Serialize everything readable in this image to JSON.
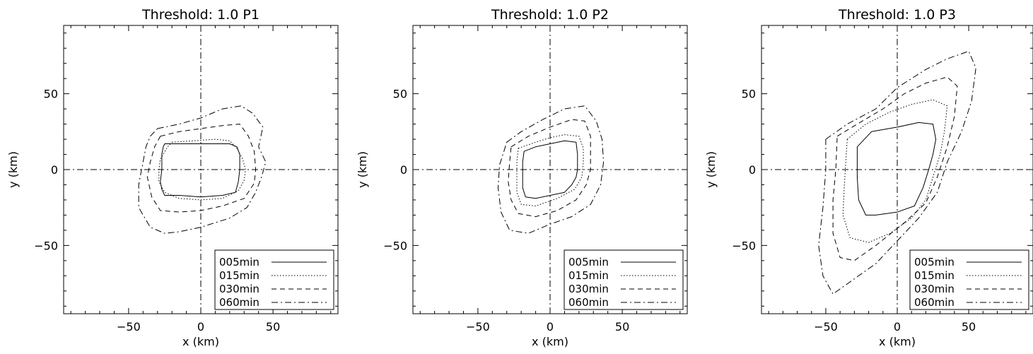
{
  "chart_data": [
    {
      "type": "line",
      "title": "Threshold: 1.0 P1",
      "xlabel": "x (km)",
      "ylabel": "y (km)",
      "xlim": [
        -95,
        95
      ],
      "ylim": [
        -95,
        95
      ],
      "xticks": [
        "−50",
        "0",
        "50"
      ],
      "yticks": [
        "−50",
        "0",
        "50"
      ],
      "grid": false,
      "legend_position": "bottom-right",
      "series": [
        {
          "name": "005min",
          "dash": "solid",
          "points": [
            [
              -25,
              17
            ],
            [
              -12,
              17
            ],
            [
              0,
              17
            ],
            [
              10,
              17
            ],
            [
              20,
              17
            ],
            [
              25,
              15
            ],
            [
              27,
              10
            ],
            [
              27,
              0
            ],
            [
              26,
              -8
            ],
            [
              24,
              -15
            ],
            [
              15,
              -17
            ],
            [
              0,
              -18
            ],
            [
              -15,
              -17
            ],
            [
              -25,
              -17
            ],
            [
              -27,
              -13
            ],
            [
              -28,
              -8
            ],
            [
              -27,
              0
            ],
            [
              -27,
              10
            ],
            [
              -26,
              15
            ],
            [
              -25,
              17
            ]
          ]
        },
        {
          "name": "015min",
          "dash": "dotted",
          "points": [
            [
              -20,
              18
            ],
            [
              -5,
              19
            ],
            [
              10,
              20
            ],
            [
              20,
              19
            ],
            [
              25,
              14
            ],
            [
              29,
              7
            ],
            [
              31,
              0
            ],
            [
              30,
              -7
            ],
            [
              26,
              -14
            ],
            [
              15,
              -19
            ],
            [
              0,
              -20
            ],
            [
              -15,
              -19
            ],
            [
              -25,
              -15
            ],
            [
              -29,
              -8
            ],
            [
              -29,
              0
            ],
            [
              -28,
              7
            ],
            [
              -23,
              15
            ],
            [
              -20,
              18
            ]
          ]
        },
        {
          "name": "030min",
          "dash": "dashed",
          "points": [
            [
              -28,
              22
            ],
            [
              -15,
              25
            ],
            [
              0,
              27
            ],
            [
              15,
              29
            ],
            [
              27,
              30
            ],
            [
              33,
              22
            ],
            [
              37,
              12
            ],
            [
              38,
              0
            ],
            [
              37,
              -9
            ],
            [
              30,
              -19
            ],
            [
              15,
              -24
            ],
            [
              0,
              -27
            ],
            [
              -15,
              -28
            ],
            [
              -28,
              -27
            ],
            [
              -34,
              -18
            ],
            [
              -37,
              -5
            ],
            [
              -35,
              5
            ],
            [
              -32,
              15
            ],
            [
              -28,
              22
            ]
          ]
        },
        {
          "name": "060min",
          "dash": "dashdot",
          "points": [
            [
              -30,
              27
            ],
            [
              -15,
              30
            ],
            [
              0,
              34
            ],
            [
              15,
              40
            ],
            [
              28,
              42
            ],
            [
              36,
              37
            ],
            [
              43,
              28
            ],
            [
              40,
              15
            ],
            [
              45,
              5
            ],
            [
              42,
              -5
            ],
            [
              38,
              -15
            ],
            [
              32,
              -25
            ],
            [
              20,
              -32
            ],
            [
              0,
              -38
            ],
            [
              -15,
              -41
            ],
            [
              -25,
              -42
            ],
            [
              -35,
              -38
            ],
            [
              -43,
              -25
            ],
            [
              -43,
              -10
            ],
            [
              -40,
              5
            ],
            [
              -38,
              15
            ],
            [
              -35,
              22
            ],
            [
              -30,
              27
            ]
          ]
        }
      ]
    },
    {
      "type": "line",
      "title": "Threshold: 1.0 P2",
      "xlabel": "x (km)",
      "ylabel": "y (km)",
      "xlim": [
        -95,
        95
      ],
      "ylim": [
        -95,
        95
      ],
      "xticks": [
        "−50",
        "0",
        "50"
      ],
      "yticks": [
        "−50",
        "0",
        "50"
      ],
      "grid": false,
      "legend_position": "bottom-right",
      "series": [
        {
          "name": "005min",
          "dash": "solid",
          "points": [
            [
              -18,
              12
            ],
            [
              -10,
              15
            ],
            [
              0,
              17
            ],
            [
              10,
              19
            ],
            [
              18,
              18
            ],
            [
              19,
              10
            ],
            [
              19,
              0
            ],
            [
              18,
              -5
            ],
            [
              15,
              -10
            ],
            [
              10,
              -15
            ],
            [
              0,
              -17
            ],
            [
              -10,
              -19
            ],
            [
              -17,
              -18
            ],
            [
              -19,
              -12
            ],
            [
              -19,
              -5
            ],
            [
              -19,
              5
            ],
            [
              -18,
              12
            ]
          ]
        },
        {
          "name": "015min",
          "dash": "dotted",
          "points": [
            [
              -22,
              14
            ],
            [
              -10,
              18
            ],
            [
              0,
              21
            ],
            [
              10,
              23
            ],
            [
              20,
              22
            ],
            [
              23,
              14
            ],
            [
              23,
              5
            ],
            [
              22,
              -5
            ],
            [
              17,
              -13
            ],
            [
              5,
              -19
            ],
            [
              -10,
              -24
            ],
            [
              -20,
              -23
            ],
            [
              -23,
              -15
            ],
            [
              -23,
              -5
            ],
            [
              -23,
              5
            ],
            [
              -22,
              14
            ]
          ]
        },
        {
          "name": "030min",
          "dash": "dashed",
          "points": [
            [
              -27,
              15
            ],
            [
              -15,
              22
            ],
            [
              0,
              28
            ],
            [
              15,
              33
            ],
            [
              24,
              32
            ],
            [
              28,
              22
            ],
            [
              28,
              10
            ],
            [
              28,
              0
            ],
            [
              25,
              -10
            ],
            [
              18,
              -20
            ],
            [
              5,
              -27
            ],
            [
              -10,
              -31
            ],
            [
              -22,
              -29
            ],
            [
              -27,
              -20
            ],
            [
              -29,
              -8
            ],
            [
              -28,
              5
            ],
            [
              -27,
              15
            ]
          ]
        },
        {
          "name": "060min",
          "dash": "dashdot",
          "points": [
            [
              -30,
              18
            ],
            [
              -20,
              25
            ],
            [
              -5,
              33
            ],
            [
              10,
              40
            ],
            [
              24,
              42
            ],
            [
              32,
              32
            ],
            [
              36,
              20
            ],
            [
              37,
              5
            ],
            [
              35,
              -10
            ],
            [
              28,
              -23
            ],
            [
              15,
              -31
            ],
            [
              0,
              -36
            ],
            [
              -15,
              -42
            ],
            [
              -28,
              -40
            ],
            [
              -34,
              -28
            ],
            [
              -36,
              -12
            ],
            [
              -35,
              3
            ],
            [
              -32,
              12
            ],
            [
              -30,
              18
            ]
          ]
        }
      ]
    },
    {
      "type": "line",
      "title": "Threshold: 1.0 P3",
      "xlabel": "x (km)",
      "ylabel": "y (km)",
      "xlim": [
        -95,
        95
      ],
      "ylim": [
        -95,
        95
      ],
      "xticks": [
        "−50",
        "0",
        "50"
      ],
      "yticks": [
        "−50",
        "0",
        "50"
      ],
      "grid": false,
      "legend_position": "bottom-right",
      "series": [
        {
          "name": "005min",
          "dash": "solid",
          "points": [
            [
              -28,
              15
            ],
            [
              -18,
              25
            ],
            [
              0,
              28
            ],
            [
              15,
              31
            ],
            [
              25,
              30
            ],
            [
              27,
              20
            ],
            [
              25,
              10
            ],
            [
              22,
              0
            ],
            [
              18,
              -12
            ],
            [
              12,
              -24
            ],
            [
              0,
              -28
            ],
            [
              -15,
              -30
            ],
            [
              -22,
              -30
            ],
            [
              -27,
              -20
            ],
            [
              -28,
              -5
            ],
            [
              -28,
              5
            ],
            [
              -28,
              15
            ]
          ]
        },
        {
          "name": "015min",
          "dash": "dotted",
          "points": [
            [
              -35,
              20
            ],
            [
              -22,
              30
            ],
            [
              -5,
              38
            ],
            [
              10,
              43
            ],
            [
              25,
              46
            ],
            [
              35,
              42
            ],
            [
              33,
              25
            ],
            [
              30,
              10
            ],
            [
              25,
              -5
            ],
            [
              20,
              -20
            ],
            [
              10,
              -32
            ],
            [
              -5,
              -42
            ],
            [
              -20,
              -48
            ],
            [
              -33,
              -45
            ],
            [
              -38,
              -30
            ],
            [
              -37,
              -10
            ],
            [
              -36,
              5
            ],
            [
              -35,
              20
            ]
          ]
        },
        {
          "name": "030min",
          "dash": "dashed",
          "points": [
            [
              -42,
              22
            ],
            [
              -28,
              30
            ],
            [
              -10,
              40
            ],
            [
              5,
              50
            ],
            [
              20,
              57
            ],
            [
              35,
              61
            ],
            [
              42,
              55
            ],
            [
              40,
              35
            ],
            [
              35,
              15
            ],
            [
              28,
              -5
            ],
            [
              20,
              -22
            ],
            [
              5,
              -35
            ],
            [
              -15,
              -50
            ],
            [
              -30,
              -60
            ],
            [
              -40,
              -58
            ],
            [
              -45,
              -42
            ],
            [
              -45,
              -20
            ],
            [
              -43,
              0
            ],
            [
              -42,
              22
            ]
          ]
        },
        {
          "name": "060min",
          "dash": "dashdot",
          "points": [
            [
              -50,
              20
            ],
            [
              -35,
              30
            ],
            [
              -15,
              40
            ],
            [
              0,
              54
            ],
            [
              20,
              66
            ],
            [
              35,
              73
            ],
            [
              50,
              78
            ],
            [
              55,
              67
            ],
            [
              52,
              45
            ],
            [
              45,
              25
            ],
            [
              35,
              5
            ],
            [
              28,
              -15
            ],
            [
              15,
              -32
            ],
            [
              0,
              -47
            ],
            [
              -15,
              -62
            ],
            [
              -30,
              -72
            ],
            [
              -45,
              -82
            ],
            [
              -52,
              -70
            ],
            [
              -55,
              -50
            ],
            [
              -52,
              -25
            ],
            [
              -50,
              0
            ],
            [
              -50,
              20
            ]
          ]
        }
      ]
    }
  ]
}
